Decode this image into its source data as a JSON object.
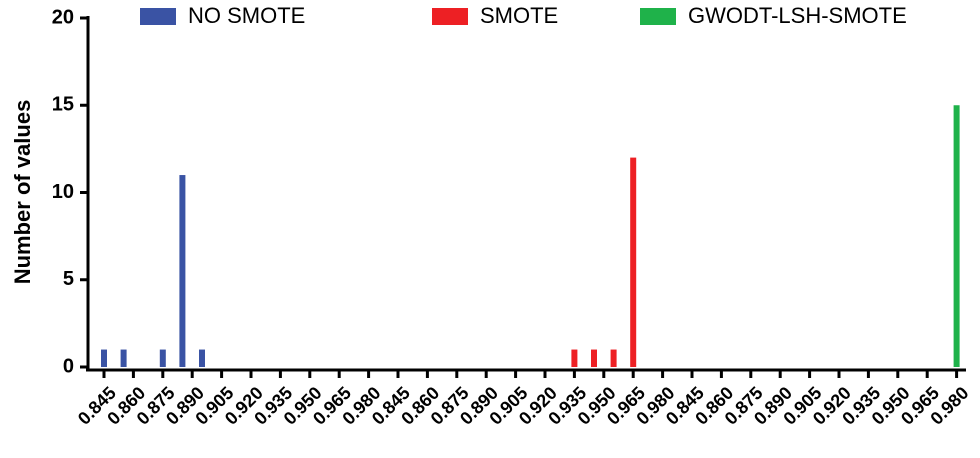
{
  "chart_data": {
    "type": "bar",
    "y_label": "Number of values",
    "categories": [
      "0.845",
      null,
      null,
      "0.860",
      null,
      null,
      "0.875",
      null,
      null,
      "0.890",
      null,
      null,
      "0.905",
      null,
      null,
      "0.920",
      null,
      null,
      "0.935",
      null,
      null,
      "0.950",
      null,
      null,
      "0.965",
      null,
      null,
      "0.980",
      null,
      null,
      "0.845",
      null,
      null,
      "0.860",
      null,
      null,
      "0.875",
      null,
      null,
      "0.890",
      null,
      null,
      "0.905",
      null,
      null,
      "0.920",
      null,
      null,
      "0.935",
      null,
      null,
      "0.950",
      null,
      null,
      "0.965",
      null,
      null,
      "0.980",
      null,
      null,
      "0.845",
      null,
      null,
      "0.860",
      null,
      null,
      "0.875",
      null,
      null,
      "0.890",
      null,
      null,
      "0.905",
      null,
      null,
      "0.920",
      null,
      null,
      "0.935",
      null,
      null,
      "0.950",
      null,
      null,
      "0.965",
      null,
      null,
      "0.980"
    ],
    "series": [
      {
        "name": "NO SMOTE",
        "color": "#3a53a4",
        "values": [
          1,
          0,
          1,
          0,
          0,
          0,
          1,
          0,
          11,
          0,
          1,
          0,
          0,
          0,
          0,
          0,
          0,
          0,
          0,
          0,
          0,
          0,
          0,
          0,
          0,
          0,
          0,
          0,
          0,
          0,
          0,
          0,
          0,
          0,
          0,
          0,
          0,
          0,
          0,
          0,
          0,
          0,
          0,
          0,
          0,
          0,
          0,
          0,
          0,
          0,
          0,
          0,
          0,
          0,
          0,
          0,
          0,
          0,
          0,
          0,
          0,
          0,
          0,
          0,
          0,
          0,
          0,
          0,
          0,
          0,
          0,
          0,
          0,
          0,
          0,
          0,
          0,
          0,
          0,
          0,
          0,
          0,
          0,
          0,
          0,
          0,
          0,
          0
        ]
      },
      {
        "name": "SMOTE",
        "color": "#ed2024",
        "values": [
          0,
          0,
          0,
          0,
          0,
          0,
          0,
          0,
          0,
          0,
          0,
          0,
          0,
          0,
          0,
          0,
          0,
          0,
          0,
          0,
          0,
          0,
          0,
          0,
          0,
          0,
          0,
          0,
          0,
          0,
          0,
          0,
          0,
          0,
          0,
          0,
          0,
          0,
          0,
          0,
          0,
          0,
          0,
          0,
          0,
          0,
          0,
          0,
          1,
          0,
          1,
          0,
          1,
          0,
          12,
          0,
          0,
          0,
          0,
          0,
          0,
          0,
          0,
          0,
          0,
          0,
          0,
          0,
          0,
          0,
          0,
          0,
          0,
          0,
          0,
          0,
          0,
          0,
          0,
          0,
          0,
          0,
          0,
          0,
          0,
          0,
          0,
          0
        ]
      },
      {
        "name": "GWODT-LSH-SMOTE",
        "color": "#1fb24a",
        "values": [
          0,
          0,
          0,
          0,
          0,
          0,
          0,
          0,
          0,
          0,
          0,
          0,
          0,
          0,
          0,
          0,
          0,
          0,
          0,
          0,
          0,
          0,
          0,
          0,
          0,
          0,
          0,
          0,
          0,
          0,
          0,
          0,
          0,
          0,
          0,
          0,
          0,
          0,
          0,
          0,
          0,
          0,
          0,
          0,
          0,
          0,
          0,
          0,
          0,
          0,
          0,
          0,
          0,
          0,
          0,
          0,
          0,
          0,
          0,
          0,
          0,
          0,
          0,
          0,
          0,
          0,
          0,
          0,
          0,
          0,
          0,
          0,
          0,
          0,
          0,
          0,
          0,
          0,
          0,
          0,
          0,
          0,
          0,
          0,
          0,
          0,
          0,
          15
        ]
      }
    ],
    "ylim": [
      0,
      20
    ],
    "yticks": [
      0,
      5,
      10,
      15,
      20
    ],
    "legend": "top"
  }
}
